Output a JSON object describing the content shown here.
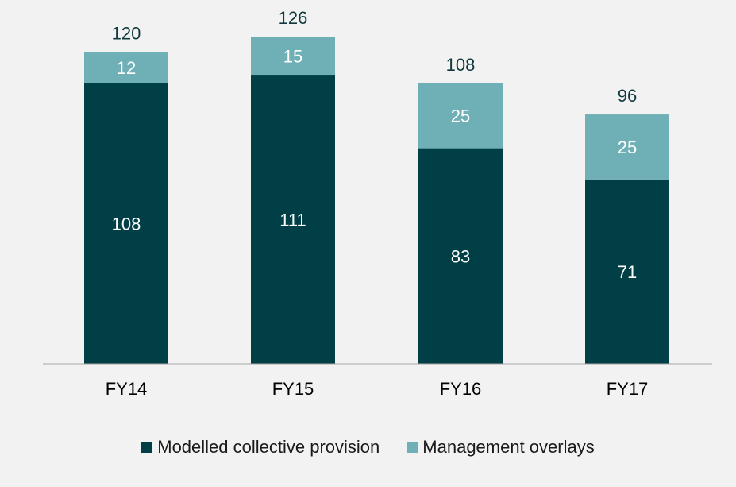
{
  "chart_data": {
    "type": "bar",
    "stacked": true,
    "categories": [
      "FY14",
      "FY15",
      "FY16",
      "FY17"
    ],
    "series": [
      {
        "name": "Modelled collective provision",
        "values": [
          108,
          111,
          83,
          71
        ],
        "color": "#003f46"
      },
      {
        "name": "Management overlays",
        "values": [
          12,
          15,
          25,
          25
        ],
        "color": "#6fafb6"
      }
    ],
    "totals": [
      120,
      126,
      108,
      96
    ],
    "ylim": [
      0,
      126
    ],
    "grid": false,
    "legend_position": "bottom-center"
  }
}
